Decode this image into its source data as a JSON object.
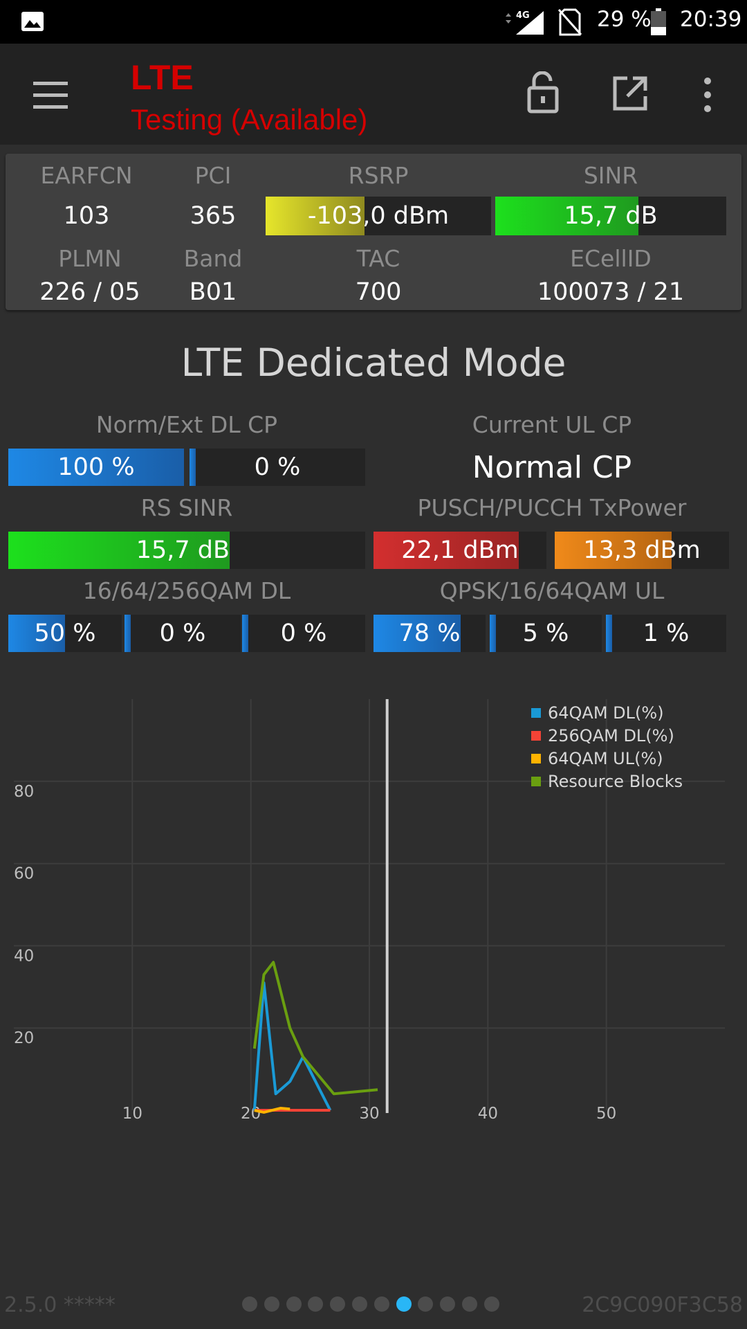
{
  "status_bar": {
    "network": "4G",
    "battery": "29 %",
    "time": "20:39"
  },
  "app_bar": {
    "title": "LTE",
    "subtitle": "Testing (Available)"
  },
  "cell_info": {
    "earfcn_label": "EARFCN",
    "earfcn": "103",
    "pci_label": "PCI",
    "pci": "365",
    "rsrp_label": "RSRP",
    "rsrp": "-103,0 dBm",
    "rsrp_level": 0.44,
    "sinr_label": "SINR",
    "sinr": "15,7 dB",
    "sinr_level": 0.62,
    "plmn_label": "PLMN",
    "plmn": "226 / 05",
    "band_label": "Band",
    "band": "B01",
    "tac_label": "TAC",
    "tac": "700",
    "ecellid_label": "ECellID",
    "ecellid": "100073 / 21"
  },
  "dedicated": {
    "title": "LTE Dedicated Mode",
    "dl_cp_label": "Norm/Ext DL CP",
    "dl_cp_norm": "100 %",
    "dl_cp_norm_level": 1.0,
    "dl_cp_ext": "0 %",
    "dl_cp_ext_level": 0,
    "ul_cp_label": "Current UL CP",
    "ul_cp": "Normal CP",
    "rs_sinr_label": "RS SINR",
    "rs_sinr": "15,7 dB",
    "rs_sinr_level": 0.62,
    "txpower_label": "PUSCH/PUCCH TxPower",
    "pusch": "22,1 dBm",
    "pusch_level": 0.84,
    "pucch": "13,3 dBm",
    "pucch_level": 0.67,
    "qam_dl_label": "16/64/256QAM DL",
    "qam16_dl": "50 %",
    "qam16_dl_level": 0.5,
    "qam64_dl": "0 %",
    "qam64_dl_level": 0,
    "qam256_dl": "0 %",
    "qam256_dl_level": 0,
    "qam_ul_label": "QPSK/16/64QAM UL",
    "qpsk_ul": "78 %",
    "qpsk_ul_level": 0.78,
    "qam16_ul": "5 %",
    "qam16_ul_level": 0.05,
    "qam64_ul": "1 %",
    "qam64_ul_level": 0.01
  },
  "chart_data": {
    "type": "line",
    "x_ticks": [
      10,
      20,
      30,
      40,
      50
    ],
    "y_ticks": [
      20,
      40,
      60,
      80
    ],
    "xlim": [
      0,
      60
    ],
    "ylim": [
      0,
      100
    ],
    "cursor_x": 31.5,
    "legend_position": "top-right",
    "grid": true,
    "series": [
      {
        "name": "64QAM DL(%)",
        "color": "#1a9ad6",
        "points": [
          [
            20.3,
            0
          ],
          [
            21.1,
            31
          ],
          [
            22.1,
            4
          ],
          [
            23.3,
            7
          ],
          [
            24.4,
            13
          ],
          [
            26.7,
            0
          ]
        ]
      },
      {
        "name": "256QAM DL(%)",
        "color": "#f44336",
        "points": [
          [
            20.3,
            0
          ],
          [
            21.1,
            0
          ],
          [
            22.1,
            0
          ],
          [
            23.3,
            0
          ],
          [
            24.4,
            0
          ],
          [
            26.7,
            0
          ]
        ]
      },
      {
        "name": "64QAM UL(%)",
        "color": "#ffb300",
        "points": [
          [
            20.3,
            0
          ],
          [
            21.1,
            -0.5
          ],
          [
            22.5,
            0.5
          ],
          [
            23.3,
            0.3
          ]
        ]
      },
      {
        "name": "Resource Blocks",
        "color": "#6a9f10",
        "points": [
          [
            20.3,
            15
          ],
          [
            21.1,
            33
          ],
          [
            21.9,
            36
          ],
          [
            23.3,
            20
          ],
          [
            24.4,
            13
          ],
          [
            27,
            4
          ],
          [
            30.7,
            5
          ]
        ]
      }
    ]
  },
  "footer": {
    "version": "2.5.0 *****",
    "device_id": "2C9C090F3C58",
    "page_count": 12,
    "active_page": 7
  }
}
